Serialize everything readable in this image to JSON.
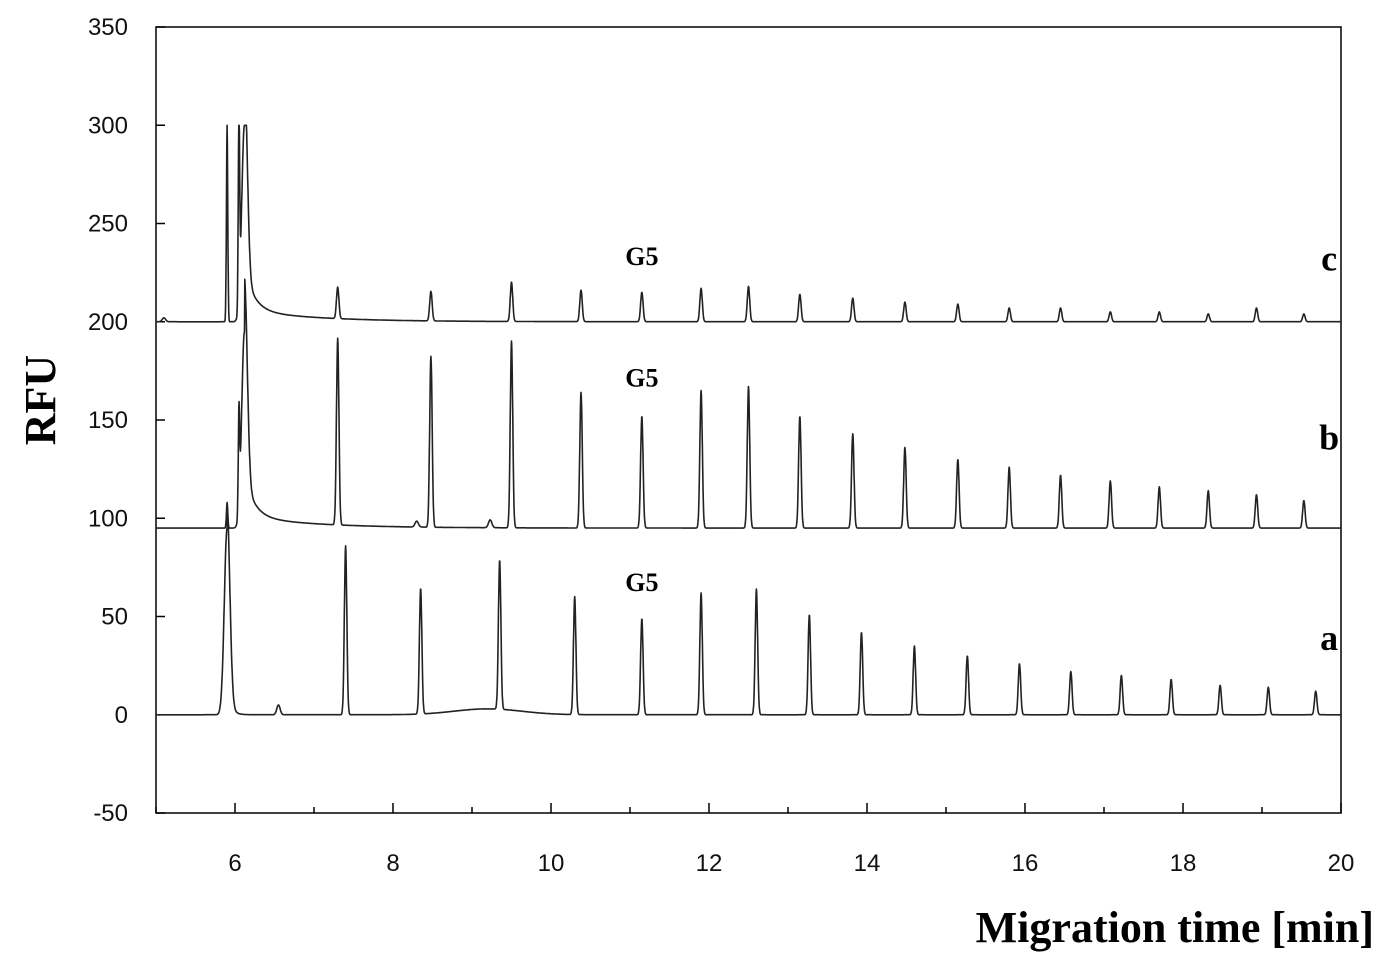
{
  "chart_data": {
    "type": "line",
    "title": "",
    "xlabel": "Migration time [min]",
    "ylabel": "RFU",
    "xlim": [
      5,
      20
    ],
    "ylim": [
      -50,
      350
    ],
    "x_ticks": [
      6,
      8,
      10,
      12,
      14,
      16,
      18,
      20
    ],
    "y_ticks": [
      -50,
      0,
      50,
      100,
      150,
      200,
      250,
      300,
      350
    ],
    "grid": false,
    "legend": "none",
    "line_color": "#222222",
    "series": [
      {
        "name": "a",
        "baseline": 0,
        "label_y": 33,
        "annotation": {
          "text": "G5",
          "x": 11.15,
          "y": 63
        },
        "peaks": [
          {
            "x": 5.9,
            "height": 95,
            "type": "main"
          },
          {
            "x": 6.55,
            "height": 5,
            "type": "small"
          },
          {
            "x": 7.4,
            "height": 86,
            "type": "peak"
          },
          {
            "x": 8.35,
            "height": 64,
            "type": "peak"
          },
          {
            "x": 9.35,
            "height": 76,
            "type": "peak"
          },
          {
            "x": 10.3,
            "height": 60,
            "type": "peak"
          },
          {
            "x": 11.15,
            "height": 49,
            "type": "peak"
          },
          {
            "x": 11.9,
            "height": 62,
            "type": "peak"
          },
          {
            "x": 12.6,
            "height": 64,
            "type": "peak"
          },
          {
            "x": 13.27,
            "height": 51,
            "type": "peak"
          },
          {
            "x": 13.93,
            "height": 42,
            "type": "peak"
          },
          {
            "x": 14.6,
            "height": 35,
            "type": "peak"
          },
          {
            "x": 15.27,
            "height": 30,
            "type": "peak"
          },
          {
            "x": 15.93,
            "height": 26,
            "type": "peak"
          },
          {
            "x": 16.58,
            "height": 22,
            "type": "peak"
          },
          {
            "x": 17.22,
            "height": 20,
            "type": "peak"
          },
          {
            "x": 17.85,
            "height": 18,
            "type": "peak"
          },
          {
            "x": 18.47,
            "height": 15,
            "type": "peak"
          },
          {
            "x": 19.08,
            "height": 14,
            "type": "peak"
          },
          {
            "x": 19.68,
            "height": 12,
            "type": "peak"
          }
        ]
      },
      {
        "name": "b",
        "baseline": 95,
        "label_y": 135,
        "annotation": {
          "text": "G5",
          "x": 11.15,
          "y": 167
        },
        "peaks": [
          {
            "x": 5.9,
            "height": 13,
            "type": "spike"
          },
          {
            "x": 6.05,
            "height": 50,
            "type": "spike"
          },
          {
            "x": 6.12,
            "height": 100,
            "type": "main"
          },
          {
            "x": 7.3,
            "height": 95,
            "type": "peak"
          },
          {
            "x": 8.3,
            "height": 3,
            "type": "small"
          },
          {
            "x": 8.48,
            "height": 87,
            "type": "peak"
          },
          {
            "x": 9.23,
            "height": 4,
            "type": "small"
          },
          {
            "x": 9.5,
            "height": 95,
            "type": "peak"
          },
          {
            "x": 10.38,
            "height": 69,
            "type": "peak"
          },
          {
            "x": 11.15,
            "height": 57,
            "type": "peak"
          },
          {
            "x": 11.9,
            "height": 70,
            "type": "peak"
          },
          {
            "x": 12.5,
            "height": 72,
            "type": "peak"
          },
          {
            "x": 13.15,
            "height": 57,
            "type": "peak"
          },
          {
            "x": 13.82,
            "height": 48,
            "type": "peak"
          },
          {
            "x": 14.48,
            "height": 41,
            "type": "peak"
          },
          {
            "x": 15.15,
            "height": 35,
            "type": "peak"
          },
          {
            "x": 15.8,
            "height": 31,
            "type": "peak"
          },
          {
            "x": 16.45,
            "height": 27,
            "type": "peak"
          },
          {
            "x": 17.08,
            "height": 24,
            "type": "peak"
          },
          {
            "x": 17.7,
            "height": 21,
            "type": "peak"
          },
          {
            "x": 18.32,
            "height": 19,
            "type": "peak"
          },
          {
            "x": 18.93,
            "height": 17,
            "type": "peak"
          },
          {
            "x": 19.53,
            "height": 14,
            "type": "peak"
          }
        ]
      },
      {
        "name": "c",
        "baseline": 200,
        "label_y": 226,
        "annotation": {
          "text": "G5",
          "x": 11.15,
          "y": 229
        },
        "peaks": [
          {
            "x": 5.1,
            "height": 2,
            "type": "small"
          },
          {
            "x": 5.9,
            "height": 100,
            "type": "spike"
          },
          {
            "x": 6.05,
            "height": 100,
            "type": "spike"
          },
          {
            "x": 6.12,
            "height": 100,
            "type": "main"
          },
          {
            "x": 7.3,
            "height": 16,
            "type": "peak"
          },
          {
            "x": 8.48,
            "height": 15,
            "type": "peak"
          },
          {
            "x": 9.5,
            "height": 20,
            "type": "peak"
          },
          {
            "x": 10.38,
            "height": 16,
            "type": "peak"
          },
          {
            "x": 11.15,
            "height": 15,
            "type": "peak"
          },
          {
            "x": 11.9,
            "height": 17,
            "type": "peak"
          },
          {
            "x": 12.5,
            "height": 18,
            "type": "peak"
          },
          {
            "x": 13.15,
            "height": 14,
            "type": "peak"
          },
          {
            "x": 13.82,
            "height": 12,
            "type": "peak"
          },
          {
            "x": 14.48,
            "height": 10,
            "type": "peak"
          },
          {
            "x": 15.15,
            "height": 9,
            "type": "peak"
          },
          {
            "x": 15.8,
            "height": 7,
            "type": "peak"
          },
          {
            "x": 16.45,
            "height": 7,
            "type": "peak"
          },
          {
            "x": 17.08,
            "height": 5,
            "type": "peak"
          },
          {
            "x": 17.7,
            "height": 5,
            "type": "peak"
          },
          {
            "x": 18.32,
            "height": 4,
            "type": "peak"
          },
          {
            "x": 18.93,
            "height": 7,
            "type": "peak"
          },
          {
            "x": 19.53,
            "height": 4,
            "type": "peak"
          }
        ]
      }
    ]
  }
}
